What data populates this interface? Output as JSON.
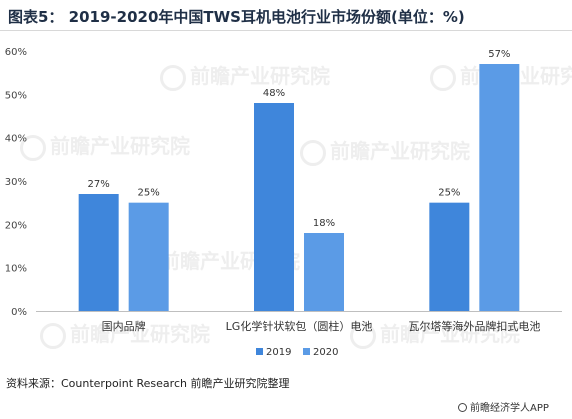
{
  "title": "图表5： 2019-2020年中国TWS耳机电池行业市场份额(单位：%)",
  "source": "资料来源：Counterpoint Research 前瞻产业研究院整理",
  "brand": "前瞻经济学人APP",
  "watermark": "前瞻产业研究院",
  "chart_data": {
    "type": "bar",
    "categories": [
      "国内品牌",
      "LG化学针状软包（圆柱）电池",
      "瓦尔塔等海外品牌扣式电池"
    ],
    "series": [
      {
        "name": "2019",
        "values": [
          27,
          48,
          25
        ],
        "labels": [
          "27%",
          "48%",
          "25%"
        ],
        "color": "#3f86db"
      },
      {
        "name": "2020",
        "values": [
          25,
          18,
          57
        ],
        "labels": [
          "25%",
          "18%",
          "57%"
        ],
        "color": "#5b9be6"
      }
    ],
    "y_ticks": [
      "0%",
      "10%",
      "20%",
      "30%",
      "40%",
      "50%",
      "60%"
    ],
    "ylim": [
      0,
      60
    ],
    "grid": false,
    "legend_position": "bottom"
  }
}
